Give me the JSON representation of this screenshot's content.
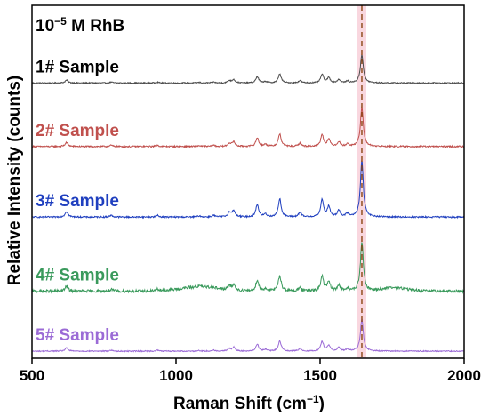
{
  "chart_data": {
    "type": "line",
    "title_text": "10",
    "title_exponent": "−5",
    "title_suffix": " M RhB",
    "xlabel": "Raman Shift (cm",
    "xlabel_exponent": "−1",
    "xlabel_suffix": ")",
    "ylabel": "Relative Intensity (counts)",
    "xlim": [
      500,
      2000
    ],
    "x_ticks": [
      500,
      1000,
      1500,
      2000
    ],
    "y_ticks_shown": false,
    "reference_line": {
      "x": 1645,
      "color": "#8B4513",
      "band_color": "#f6c6d2"
    },
    "peaks": [
      {
        "x": 620,
        "w": 6,
        "rel": 0.1
      },
      {
        "x": 775,
        "w": 6,
        "rel": 0.03
      },
      {
        "x": 935,
        "w": 6,
        "rel": 0.03
      },
      {
        "x": 1080,
        "w": 6,
        "rel": 0.02
      },
      {
        "x": 1130,
        "w": 6,
        "rel": 0.03
      },
      {
        "x": 1185,
        "w": 6,
        "rel": 0.08
      },
      {
        "x": 1200,
        "w": 6,
        "rel": 0.12
      },
      {
        "x": 1282,
        "w": 6,
        "rel": 0.22
      },
      {
        "x": 1310,
        "w": 6,
        "rel": 0.05
      },
      {
        "x": 1360,
        "w": 6,
        "rel": 0.32
      },
      {
        "x": 1430,
        "w": 6,
        "rel": 0.08
      },
      {
        "x": 1507,
        "w": 6,
        "rel": 0.3
      },
      {
        "x": 1530,
        "w": 6,
        "rel": 0.18
      },
      {
        "x": 1565,
        "w": 6,
        "rel": 0.12
      },
      {
        "x": 1595,
        "w": 6,
        "rel": 0.06
      },
      {
        "x": 1645,
        "w": 6,
        "rel": 1.0
      }
    ],
    "series": [
      {
        "name": "1# Sample",
        "color": "#4a4a4a",
        "label_color": "#000000",
        "baseline": 0.78,
        "amplitude": 0.08,
        "noise": 0.0015,
        "broad": 0.0
      },
      {
        "name": "2# Sample",
        "color": "#c0504d",
        "label_color": "#c0504d",
        "baseline": 0.6,
        "amplitude": 0.11,
        "noise": 0.002,
        "broad": 0.0
      },
      {
        "name": "3# Sample",
        "color": "#1f3fbf",
        "label_color": "#1f3fbf",
        "baseline": 0.4,
        "amplitude": 0.16,
        "noise": 0.002,
        "broad": 0.0
      },
      {
        "name": "4# Sample",
        "color": "#3a9a5c",
        "label_color": "#3a9a5c",
        "baseline": 0.19,
        "amplitude": 0.14,
        "noise": 0.004,
        "broad": 0.012
      },
      {
        "name": "5# Sample",
        "color": "#9b6bd6",
        "label_color": "#9b6bd6",
        "baseline": 0.02,
        "amplitude": 0.09,
        "noise": 0.0015,
        "broad": 0.0
      }
    ]
  }
}
